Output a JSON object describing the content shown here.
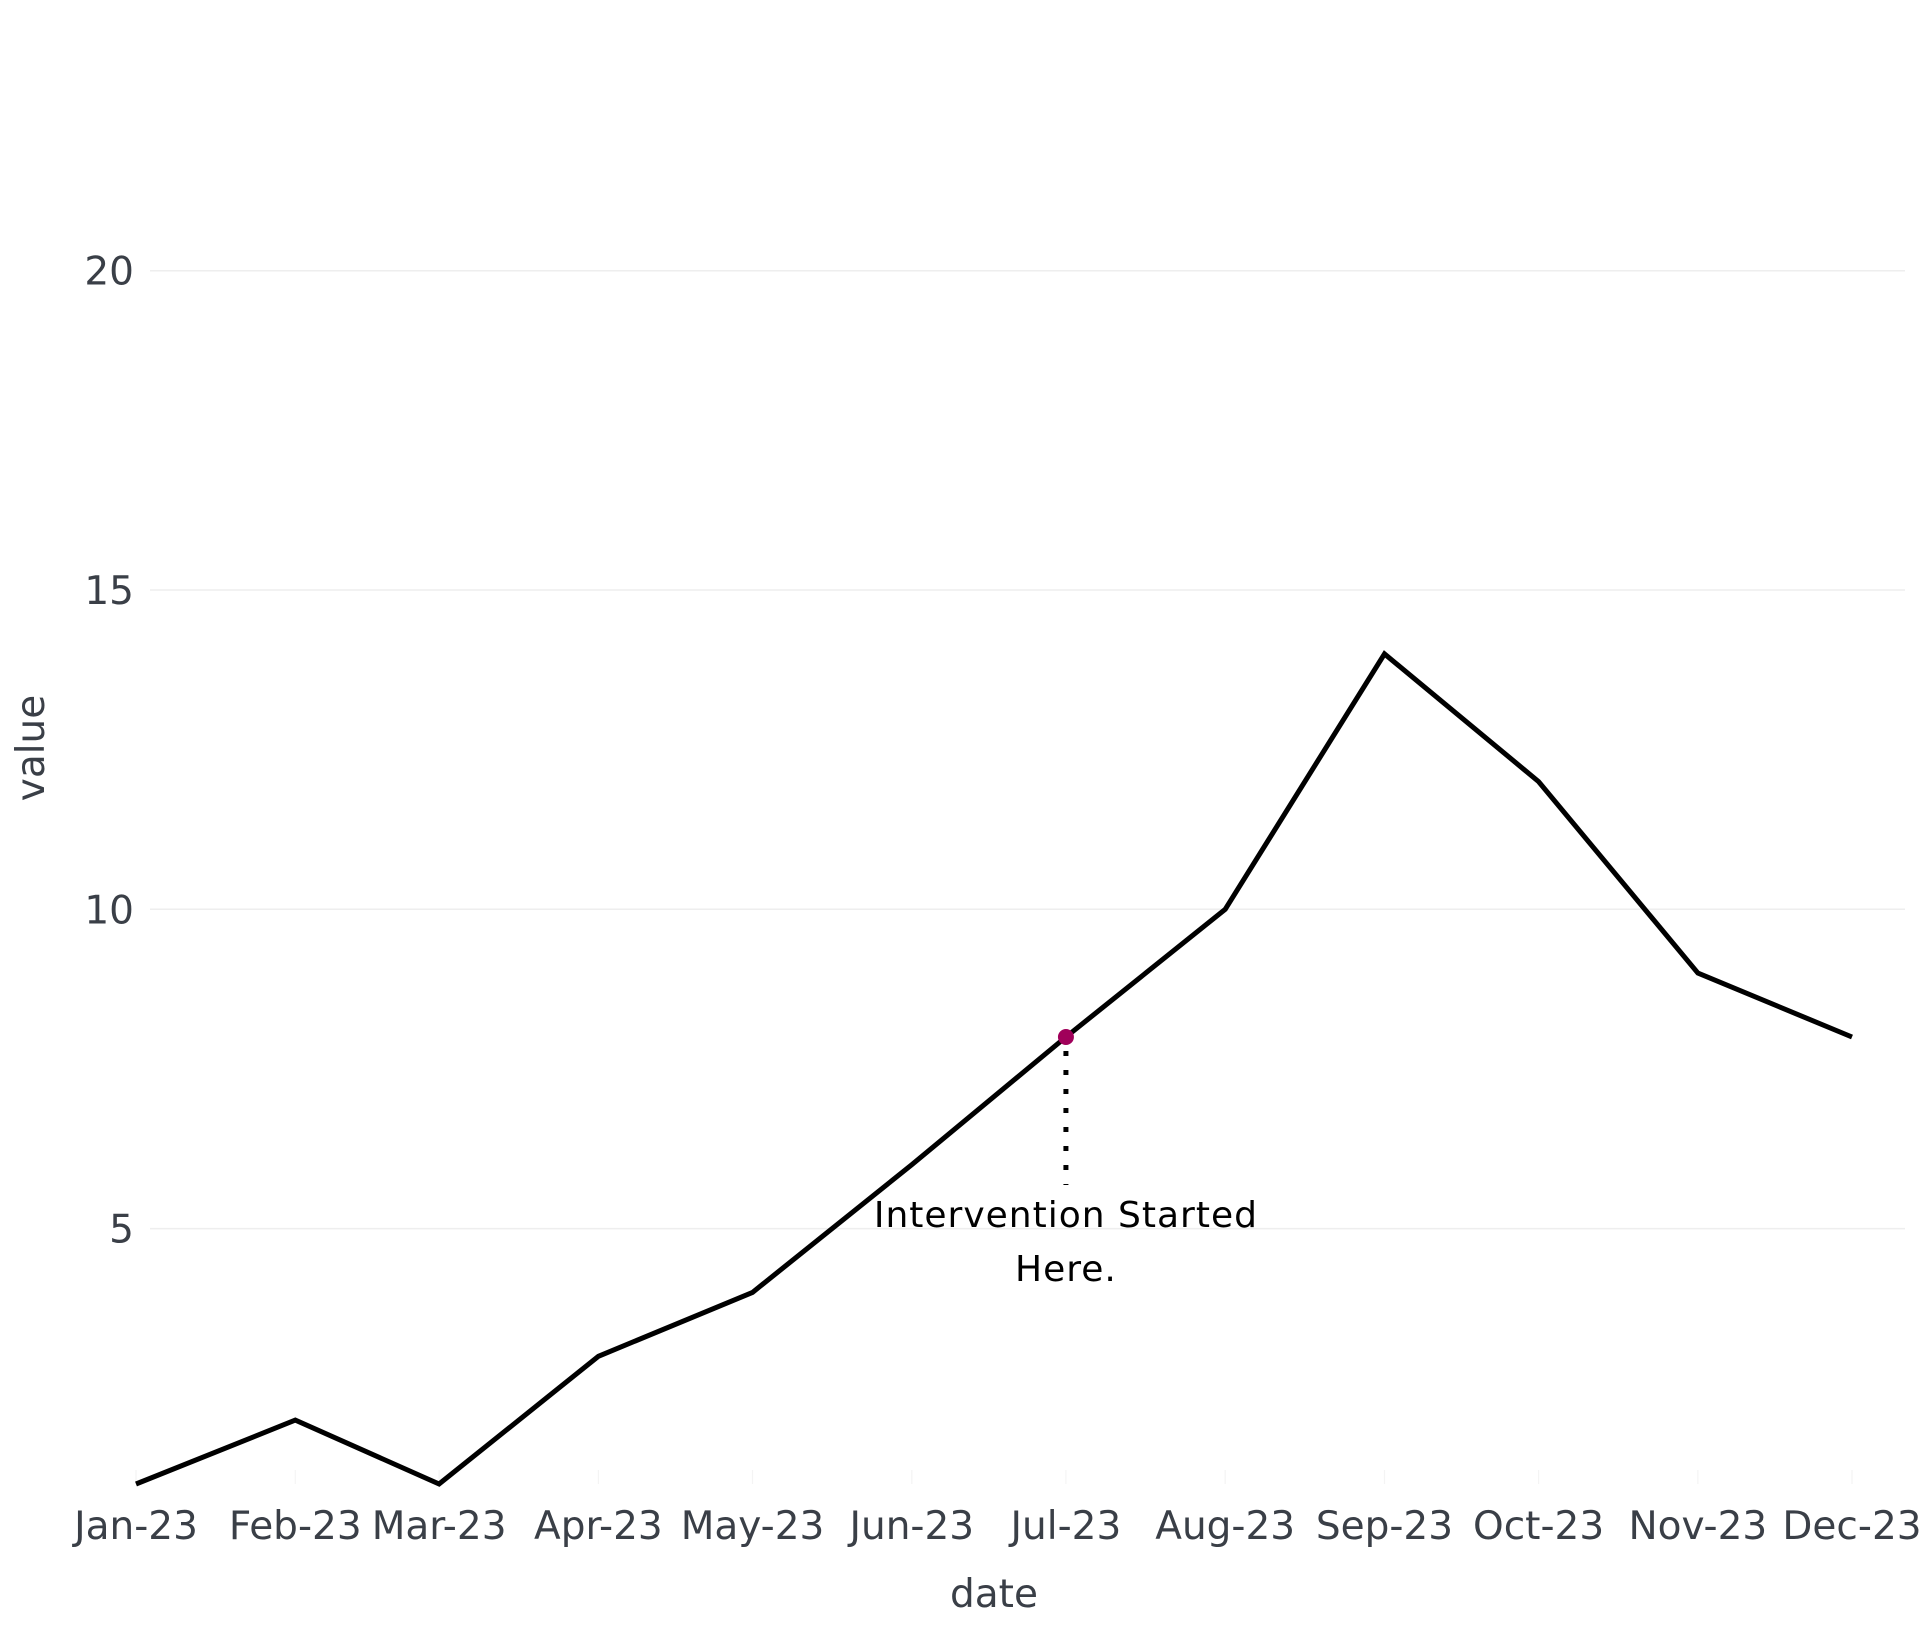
{
  "chart_data": {
    "type": "line",
    "categories": [
      "Jan-23",
      "Feb-23",
      "Mar-23",
      "Apr-23",
      "May-23",
      "Jun-23",
      "Jul-23",
      "Aug-23",
      "Sep-23",
      "Oct-23",
      "Nov-23",
      "Dec-23"
    ],
    "x": [
      "2023-01-01",
      "2023-02-01",
      "2023-03-01",
      "2023-04-01",
      "2023-05-01",
      "2023-06-01",
      "2023-07-01",
      "2023-08-01",
      "2023-09-01",
      "2023-10-01",
      "2023-11-01",
      "2023-12-01"
    ],
    "series": [
      {
        "values": [
          1,
          2,
          1,
          3,
          4,
          6,
          8,
          10,
          14,
          12,
          9,
          8
        ],
        "color": "#000000"
      }
    ],
    "xlabel": "date",
    "ylabel": "value",
    "ylim": [
      1,
      22
    ],
    "yticks": [
      5,
      10,
      15,
      20
    ],
    "grid": true,
    "legend": "none",
    "annotation": {
      "x": "2023-07-01",
      "y": 8,
      "marker_color": "#a0005a",
      "lines": [
        "Intervention Started",
        "Here."
      ]
    }
  }
}
